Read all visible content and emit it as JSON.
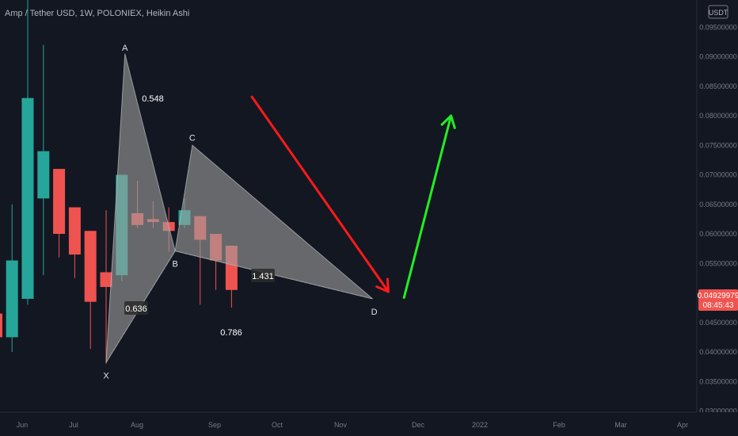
{
  "header": {
    "title": "Amp / Tether USD, 1W, POLONIEX, Heikin Ashi"
  },
  "price_axis": {
    "currency_label": "USDT",
    "current_price": "0.04929979",
    "countdown": "08:45:43",
    "current_price_color": "#ef5350"
  },
  "colors": {
    "background": "#131722",
    "up_candle": "#26a69a",
    "down_candle": "#ef5350",
    "pattern_fill": "#9e9e9e",
    "bearish_arrow": "#ff1a1a",
    "bullish_arrow": "#22ee22",
    "axis_text": "#787b86"
  },
  "chart_data": {
    "type": "candlestick",
    "style": "Heikin Ashi",
    "interval": "1W",
    "exchange": "POLONIEX",
    "symbol": "Amp / Tether USD",
    "y_ticks": [
      "0.09500000",
      "0.09000000",
      "0.08500000",
      "0.08000000",
      "0.07500000",
      "0.07000000",
      "0.06500000",
      "0.06000000",
      "0.05500000",
      "0.05000000",
      "0.04500000",
      "0.04000000",
      "0.03500000",
      "0.03000000"
    ],
    "x_ticks": [
      "Jun",
      "Jul",
      "Aug",
      "Sep",
      "Oct",
      "Nov",
      "Dec",
      "2022",
      "Feb",
      "Mar",
      "Apr"
    ],
    "ylim": [
      0.0298,
      0.0996
    ],
    "candles": [
      {
        "week": -2,
        "open": 0.0465,
        "close": 0.0425,
        "high": 0.047,
        "low": 0.041
      },
      {
        "week": -1,
        "open": 0.0425,
        "close": 0.0555,
        "high": 0.065,
        "low": 0.04
      },
      {
        "week": 0,
        "open": 0.049,
        "close": 0.083,
        "high": 0.1,
        "low": 0.048
      },
      {
        "week": 1,
        "open": 0.066,
        "close": 0.074,
        "high": 0.092,
        "low": 0.053
      },
      {
        "week": 2,
        "open": 0.071,
        "close": 0.06,
        "high": 0.071,
        "low": 0.056
      },
      {
        "week": 3,
        "open": 0.0645,
        "close": 0.0565,
        "high": 0.0645,
        "low": 0.0525
      },
      {
        "week": 4,
        "open": 0.0605,
        "close": 0.0485,
        "high": 0.0605,
        "low": 0.0405
      },
      {
        "week": 5,
        "open": 0.0535,
        "close": 0.051,
        "high": 0.064,
        "low": 0.038
      },
      {
        "week": 6,
        "open": 0.053,
        "close": 0.07,
        "high": 0.07,
        "low": 0.052
      },
      {
        "week": 7,
        "open": 0.0635,
        "close": 0.0615,
        "high": 0.069,
        "low": 0.061
      },
      {
        "week": 8,
        "open": 0.0625,
        "close": 0.062,
        "high": 0.0655,
        "low": 0.061
      },
      {
        "week": 9,
        "open": 0.062,
        "close": 0.0605,
        "high": 0.0645,
        "low": 0.057
      },
      {
        "week": 10,
        "open": 0.0615,
        "close": 0.064,
        "high": 0.066,
        "low": 0.061
      },
      {
        "week": 11,
        "open": 0.063,
        "close": 0.059,
        "high": 0.063,
        "low": 0.048
      },
      {
        "week": 12,
        "open": 0.06,
        "close": 0.0555,
        "high": 0.06,
        "low": 0.0505
      },
      {
        "week": 13,
        "open": 0.058,
        "close": 0.0505,
        "high": 0.058,
        "low": 0.0475
      }
    ],
    "pattern": {
      "points": [
        {
          "label": "X",
          "week": 5.0,
          "price": 0.0382
        },
        {
          "label": "A",
          "week": 6.2,
          "price": 0.0905
        },
        {
          "label": "B",
          "week": 9.4,
          "price": 0.0571
        },
        {
          "label": "C",
          "week": 10.5,
          "price": 0.075
        },
        {
          "label": "D",
          "week": 22.0,
          "price": 0.049
        }
      ],
      "ratios": [
        {
          "text": "0.548",
          "boxed": false
        },
        {
          "text": "0.636",
          "boxed": true
        },
        {
          "text": "1.431",
          "boxed": true
        },
        {
          "text": "0.786",
          "boxed": false
        }
      ]
    },
    "arrows": [
      {
        "direction": "down",
        "from": {
          "week": 14.3,
          "price": 0.0832
        },
        "to": {
          "week": 23.0,
          "price": 0.0502
        }
      },
      {
        "direction": "up",
        "from": {
          "week": 24.0,
          "price": 0.0492
        },
        "to": {
          "week": 27.0,
          "price": 0.08
        }
      }
    ]
  }
}
